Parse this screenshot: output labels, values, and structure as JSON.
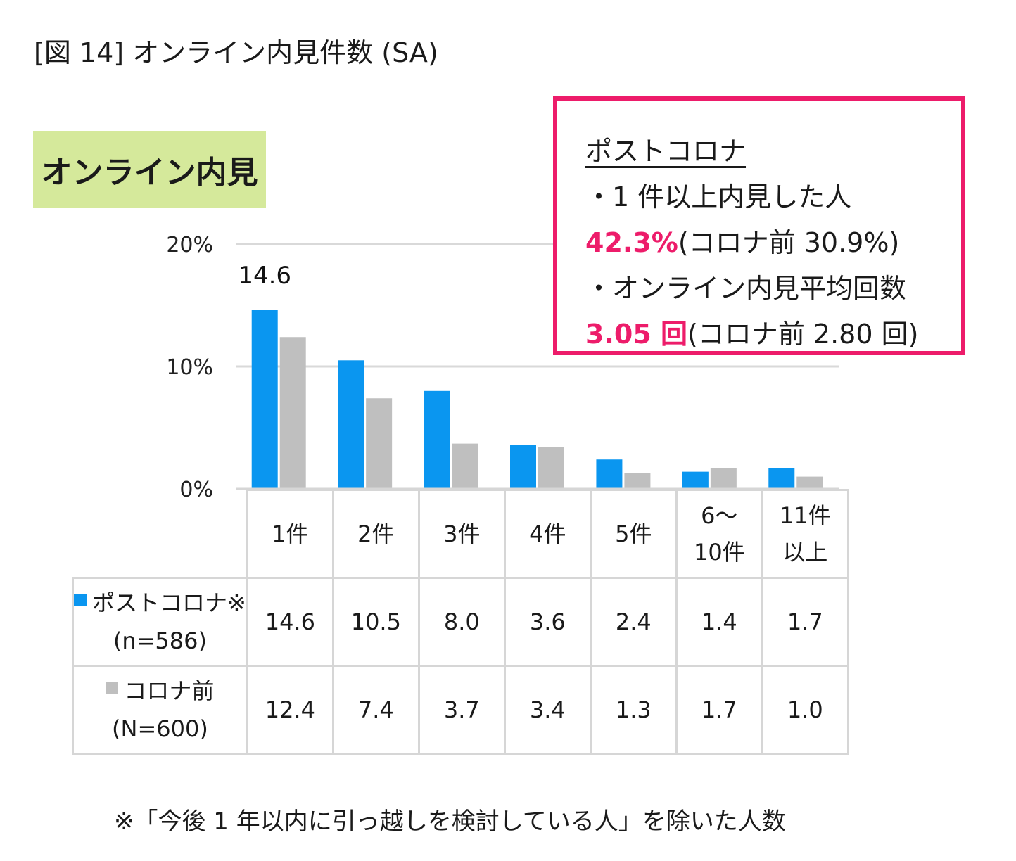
{
  "figure_title": "[図 14] オンライン内見件数 (SA)",
  "tag_label": "オンライン内見",
  "callout": {
    "heading": "ポストコロナ",
    "line1": "・1 件以上内見した人",
    "line2_value": "42.3%",
    "line2_rest": "(コロナ前 30.9%)",
    "line3": "・オンライン内見平均回数",
    "line4_value": "3.05 回",
    "line4_rest": "(コロナ前 2.80 回)"
  },
  "colors": {
    "post_corona": "#0a96f0",
    "pre_corona": "#bfbfbf",
    "accent": "#ed1c6a",
    "tag_bg": "#d5e99b"
  },
  "chart_data": {
    "type": "bar",
    "categories": [
      "1件",
      "2件",
      "3件",
      "4件",
      "5件",
      "6～10件",
      "11件以上"
    ],
    "category_lines": [
      [
        "1件"
      ],
      [
        "2件"
      ],
      [
        "3件"
      ],
      [
        "4件"
      ],
      [
        "5件"
      ],
      [
        "6～",
        "10件"
      ],
      [
        "11件",
        "以上"
      ]
    ],
    "series": [
      {
        "name": "ポストコロナ※",
        "n_label": "(n=586)",
        "values": [
          14.6,
          10.5,
          8.0,
          3.6,
          2.4,
          1.4,
          1.7
        ]
      },
      {
        "name": "コロナ前",
        "n_label": "(N=600)",
        "values": [
          12.4,
          7.4,
          3.7,
          3.4,
          1.3,
          1.7,
          1.0
        ]
      }
    ],
    "ylim": [
      0,
      20
    ],
    "yticks": [
      0,
      10,
      20
    ],
    "ytick_labels": [
      "0%",
      "10%",
      "20%"
    ],
    "data_labels": [
      {
        "category": "1件",
        "series": "ポストコロナ※",
        "text": "14.6"
      }
    ],
    "grid": true
  },
  "table_values": {
    "post": [
      "14.6",
      "10.5",
      "8.0",
      "3.6",
      "2.4",
      "1.4",
      "1.7"
    ],
    "pre": [
      "12.4",
      "7.4",
      "3.7",
      "3.4",
      "1.3",
      "1.7",
      "1.0"
    ]
  },
  "footnote": "※「今後 1 年以内に引っ越しを検討している人」を除いた人数"
}
